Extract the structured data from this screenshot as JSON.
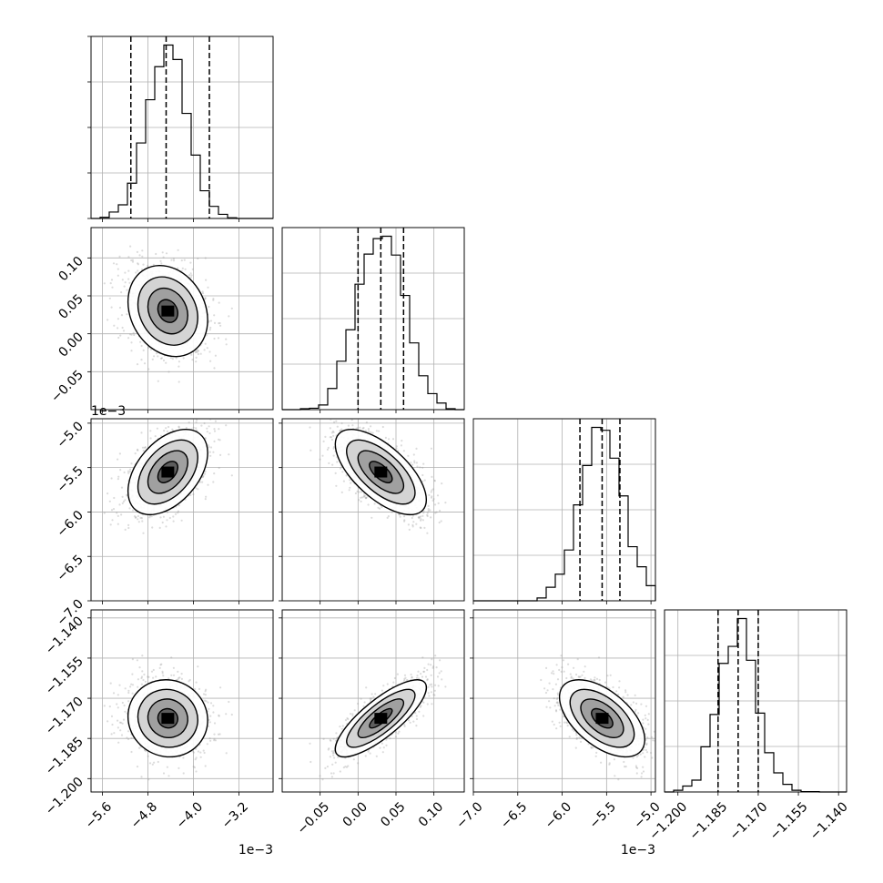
{
  "chart_data": {
    "type": "corner",
    "variables": [
      {
        "ticks": [
          -5.6,
          -4.8,
          -4.0,
          -3.2
        ],
        "tick_labels": [
          "−5.6",
          "−4.8",
          "−4.0",
          "−3.2"
        ],
        "range": [
          -5.8,
          -2.6
        ],
        "offset_text": "1e−3",
        "quantiles": [
          -5.1,
          -4.48,
          -3.72
        ]
      },
      {
        "ticks": [
          -0.05,
          0.0,
          0.05,
          0.1
        ],
        "tick_labels": [
          "−0.05",
          "0.00",
          "0.05",
          "0.10"
        ],
        "range": [
          -0.1,
          0.14
        ],
        "offset_text": "",
        "quantiles": [
          0.0,
          0.03,
          0.06
        ]
      },
      {
        "ticks": [
          -7.0,
          -6.5,
          -6.0,
          -5.5,
          -5.0
        ],
        "tick_labels": [
          "−7.0",
          "−6.5",
          "−6.0",
          "−5.5",
          "−5.0"
        ],
        "range": [
          -7.0,
          -4.95
        ],
        "offset_text": "1e−3",
        "quantiles": [
          -5.8,
          -5.55,
          -5.35
        ]
      },
      {
        "ticks": [
          -1.2,
          -1.185,
          -1.17,
          -1.155,
          -1.14
        ],
        "tick_labels": [
          "−1.200",
          "−1.185",
          "−1.170",
          "−1.155",
          "−1.140"
        ],
        "range": [
          -1.205,
          -1.137
        ],
        "offset_text": "",
        "quantiles": [
          -1.185,
          -1.1775,
          -1.17
        ]
      }
    ],
    "means": [
      -4.45,
      0.03,
      -5.55,
      -1.1775
    ],
    "sds": [
      0.35,
      0.03,
      0.24,
      0.0072
    ],
    "correlations": [
      [
        1.0,
        -0.2,
        0.45,
        -0.05
      ],
      [
        -0.2,
        1.0,
        -0.65,
        0.8
      ],
      [
        0.45,
        -0.65,
        1.0,
        -0.55
      ],
      [
        -0.05,
        0.8,
        -0.55,
        1.0
      ]
    ],
    "grid": true,
    "legend": "none"
  }
}
